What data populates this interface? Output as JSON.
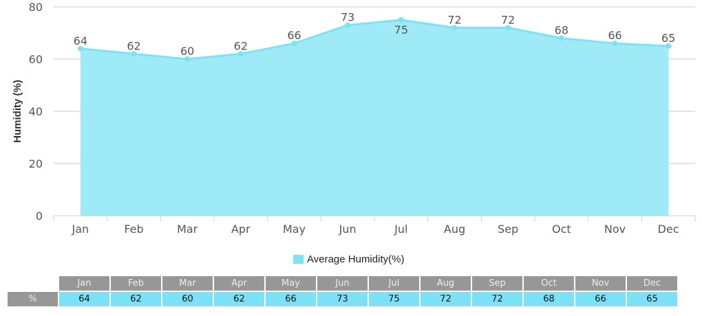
{
  "chart_data": {
    "type": "area",
    "categories": [
      "Jan",
      "Feb",
      "Mar",
      "Apr",
      "May",
      "Jun",
      "Jul",
      "Aug",
      "Sep",
      "Oct",
      "Nov",
      "Dec"
    ],
    "series": [
      {
        "name": "Average Humidity(%)",
        "values": [
          64,
          62,
          60,
          62,
          66,
          73,
          75,
          72,
          72,
          68,
          66,
          65
        ]
      }
    ],
    "ylabel": "Humidity (%)",
    "ylim": [
      0,
      80
    ],
    "yticks": [
      0,
      20,
      40,
      60,
      80
    ],
    "grid": true,
    "legend": "bottom",
    "data_labels": true,
    "colors": {
      "fill": "#9eeaf7",
      "line": "#7be3f3",
      "grid": "#c8c8c8"
    }
  },
  "table": {
    "row_label": "%"
  }
}
